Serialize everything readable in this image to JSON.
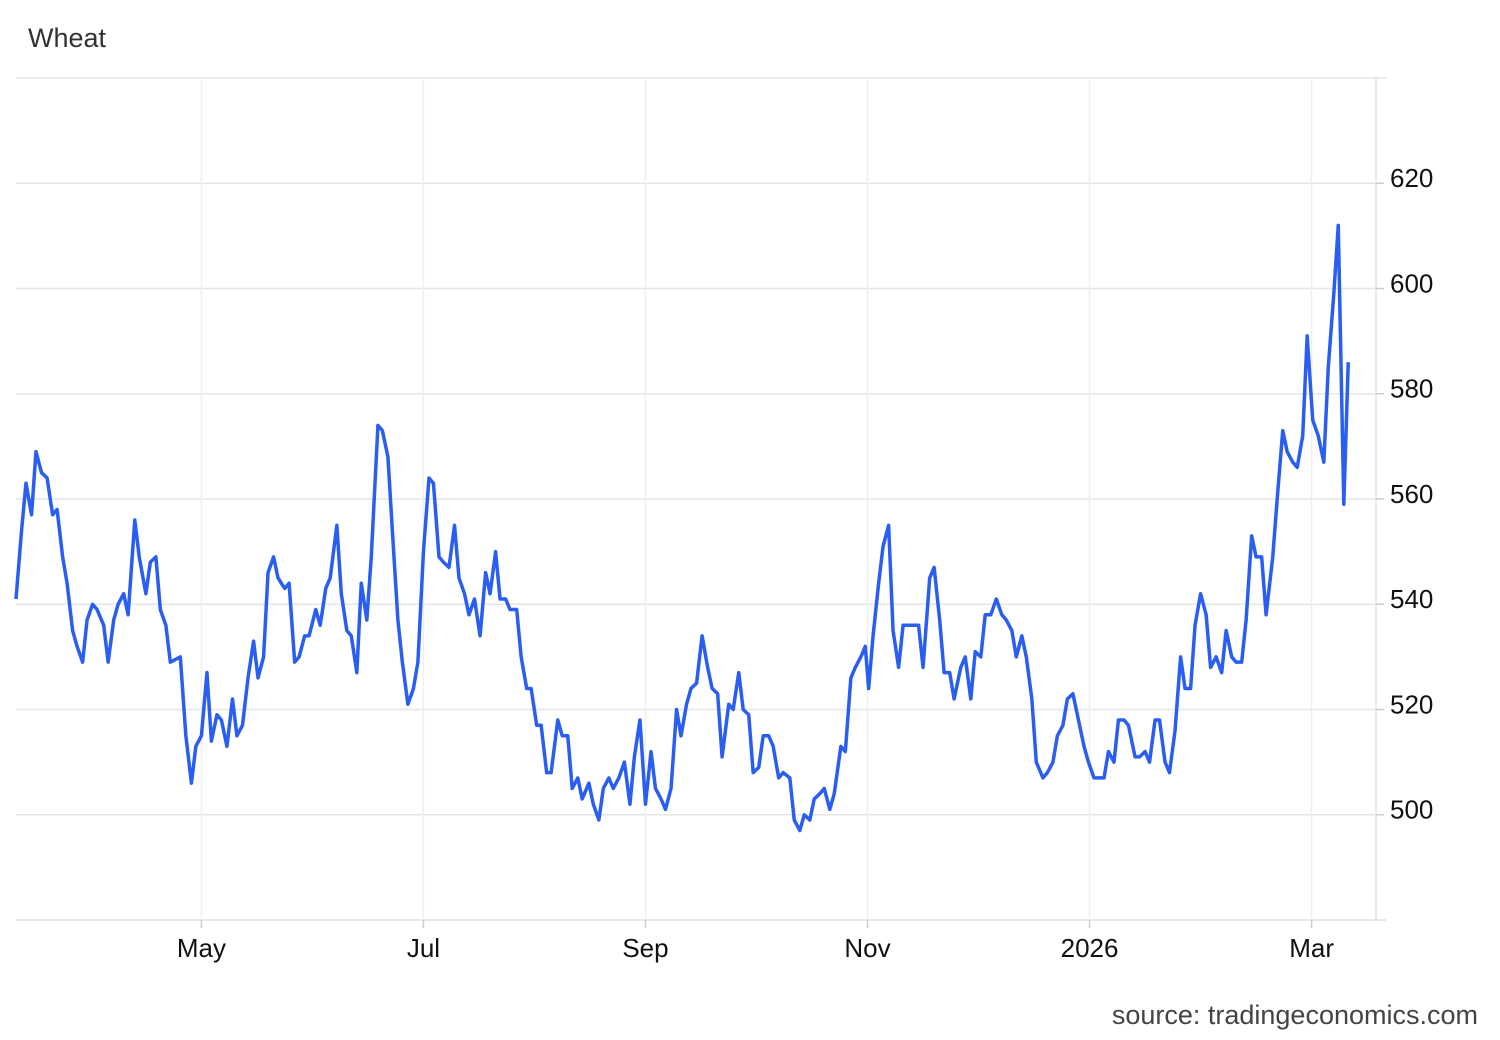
{
  "chart_data": {
    "type": "line",
    "title": "Wheat",
    "source": "source: tradingeconomics.com",
    "color": "#2a5ef3",
    "grid": true,
    "ylim": [
      480,
      640
    ],
    "yticks": [
      500,
      520,
      540,
      560,
      580,
      600,
      620
    ],
    "xlim": [
      3.33,
      15.58
    ],
    "xticks": [
      {
        "value": 5,
        "label": "May"
      },
      {
        "value": 7,
        "label": "Jul"
      },
      {
        "value": 9,
        "label": "Sep"
      },
      {
        "value": 11,
        "label": "Nov"
      },
      {
        "value": 13,
        "label": "2026"
      },
      {
        "value": 15,
        "label": "Mar"
      }
    ],
    "x": [
      3.33,
      3.38,
      3.42,
      3.47,
      3.51,
      3.56,
      3.61,
      3.66,
      3.7,
      3.75,
      3.79,
      3.84,
      3.88,
      3.93,
      3.97,
      4.02,
      4.06,
      4.12,
      4.16,
      4.21,
      4.25,
      4.3,
      4.34,
      4.4,
      4.44,
      4.5,
      4.54,
      4.59,
      4.63,
      4.68,
      4.72,
      4.81,
      4.86,
      4.91,
      4.95,
      5.0,
      5.05,
      5.09,
      5.14,
      5.18,
      5.23,
      5.28,
      5.32,
      5.37,
      5.42,
      5.47,
      5.51,
      5.56,
      5.6,
      5.65,
      5.69,
      5.75,
      5.79,
      5.84,
      5.88,
      5.93,
      5.97,
      6.03,
      6.07,
      6.12,
      6.16,
      6.22,
      6.26,
      6.31,
      6.35,
      6.4,
      6.44,
      6.49,
      6.53,
      6.59,
      6.63,
      6.68,
      6.72,
      6.77,
      6.81,
      6.86,
      6.91,
      6.95,
      7.0,
      7.05,
      7.09,
      7.14,
      7.18,
      7.23,
      7.28,
      7.32,
      7.37,
      7.41,
      7.46,
      7.51,
      7.56,
      7.6,
      7.65,
      7.69,
      7.74,
      7.78,
      7.84,
      7.88,
      7.93,
      7.97,
      8.02,
      8.06,
      8.11,
      8.15,
      8.21,
      8.25,
      8.3,
      8.34,
      8.39,
      8.43,
      8.49,
      8.53,
      8.58,
      8.62,
      8.67,
      8.71,
      8.76,
      8.81,
      8.86,
      8.9,
      8.95,
      9.0,
      9.05,
      9.09,
      9.14,
      9.18,
      9.23,
      9.28,
      9.32,
      9.37,
      9.41,
      9.46,
      9.51,
      9.56,
      9.6,
      9.65,
      9.69,
      9.75,
      9.79,
      9.84,
      9.88,
      9.93,
      9.97,
      10.02,
      10.06,
      10.11,
      10.15,
      10.2,
      10.24,
      10.3,
      10.34,
      10.39,
      10.43,
      10.48,
      10.52,
      10.57,
      10.61,
      10.66,
      10.7,
      10.76,
      10.8,
      10.85,
      10.89,
      10.94,
      10.98,
      11.01,
      11.05,
      11.1,
      11.14,
      11.19,
      11.23,
      11.28,
      11.32,
      11.37,
      11.41,
      11.46,
      11.5,
      11.56,
      11.6,
      11.65,
      11.69,
      11.74,
      11.78,
      11.84,
      11.88,
      11.93,
      11.97,
      12.02,
      12.06,
      12.11,
      12.16,
      12.21,
      12.25,
      12.3,
      12.34,
      12.39,
      12.43,
      12.48,
      12.52,
      12.58,
      12.62,
      12.67,
      12.71,
      12.76,
      12.8,
      12.85,
      12.89,
      12.95,
      12.99,
      13.04,
      13.08,
      13.13,
      13.17,
      13.22,
      13.26,
      13.31,
      13.35,
      13.41,
      13.45,
      13.5,
      13.54,
      13.59,
      13.63,
      13.68,
      13.72,
      13.77,
      13.82,
      13.86,
      13.91,
      13.95,
      14.0,
      14.05,
      14.09,
      14.14,
      14.19,
      14.23,
      14.28,
      14.32,
      14.37,
      14.41,
      14.46,
      14.5,
      14.55,
      14.59,
      14.65,
      14.69,
      14.74,
      14.78,
      14.83,
      14.87,
      14.92,
      14.96,
      15.01,
      15.06,
      15.11,
      15.15,
      15.2,
      15.24,
      15.29,
      15.33
    ],
    "values": [
      541,
      554,
      563,
      557,
      569,
      565,
      564,
      557,
      558,
      549,
      544,
      535,
      532,
      529,
      537,
      540,
      539,
      536,
      529,
      537,
      540,
      542,
      538,
      556,
      549,
      542,
      548,
      549,
      539,
      536,
      529,
      530,
      515,
      506,
      513,
      515,
      527,
      514,
      519,
      518,
      513,
      522,
      515,
      517,
      526,
      533,
      526,
      530,
      546,
      549,
      545,
      543,
      544,
      529,
      530,
      534,
      534,
      539,
      536,
      543,
      545,
      555,
      542,
      535,
      534,
      527,
      544,
      537,
      549,
      574,
      573,
      568,
      554,
      537,
      529,
      521,
      524,
      529,
      550,
      564,
      563,
      549,
      548,
      547,
      555,
      545,
      542,
      538,
      541,
      534,
      546,
      542,
      550,
      541,
      541,
      539,
      539,
      530,
      524,
      524,
      517,
      517,
      508,
      508,
      518,
      515,
      515,
      505,
      507,
      503,
      506,
      502,
      499,
      505,
      507,
      505,
      507,
      510,
      502,
      511,
      518,
      502,
      512,
      505,
      503,
      501,
      505,
      520,
      515,
      521,
      524,
      525,
      534,
      528,
      524,
      523,
      511,
      521,
      520,
      527,
      520,
      519,
      508,
      509,
      515,
      515,
      513,
      507,
      508,
      507,
      499,
      497,
      500,
      499,
      503,
      504,
      505,
      501,
      504,
      513,
      512,
      526,
      528,
      530,
      532,
      524,
      534,
      544,
      551,
      555,
      535,
      528,
      536,
      536,
      536,
      536,
      528,
      545,
      547,
      537,
      527,
      527,
      522,
      528,
      530,
      522,
      531,
      530,
      538,
      538,
      541,
      538,
      537,
      535,
      530,
      534,
      530,
      522,
      510,
      507,
      508,
      510,
      515,
      517,
      522,
      523,
      519,
      513,
      510,
      507,
      507,
      507,
      512,
      510,
      518,
      518,
      517,
      511,
      511,
      512,
      510,
      518,
      518,
      510,
      508,
      516,
      530,
      524,
      524,
      536,
      542,
      538,
      528,
      530,
      527,
      535,
      530,
      529,
      529,
      537,
      553,
      549,
      549,
      538,
      549,
      560,
      573,
      569,
      567,
      566,
      572,
      591,
      575,
      572,
      567,
      585,
      599,
      612,
      559,
      586
    ]
  }
}
